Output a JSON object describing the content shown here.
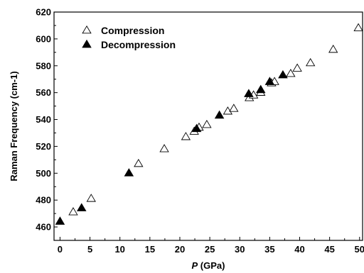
{
  "chart_data": {
    "type": "scatter",
    "xlabel_italic": "P",
    "xlabel_unit": " (GPa)",
    "ylabel": "Raman Frequency (cm-1)",
    "xlim": [
      -1,
      50.5
    ],
    "ylim": [
      450,
      620
    ],
    "xticks": [
      0,
      5,
      10,
      15,
      20,
      25,
      30,
      35,
      40,
      45,
      50
    ],
    "yticks": [
      460,
      480,
      500,
      520,
      540,
      560,
      580,
      600,
      620
    ],
    "legend_position": "top-left",
    "grid": false,
    "series": [
      {
        "name": "Compression",
        "marker": "triangle-open",
        "color": "#000000",
        "points": [
          [
            2.2,
            471
          ],
          [
            5.2,
            481
          ],
          [
            13.1,
            507
          ],
          [
            17.4,
            518
          ],
          [
            21.0,
            527
          ],
          [
            22.4,
            531
          ],
          [
            23.2,
            534
          ],
          [
            24.5,
            536
          ],
          [
            28.0,
            546
          ],
          [
            29.0,
            548
          ],
          [
            31.6,
            556
          ],
          [
            32.3,
            558
          ],
          [
            33.5,
            560
          ],
          [
            35.3,
            567
          ],
          [
            35.8,
            568
          ],
          [
            38.5,
            574
          ],
          [
            39.6,
            578
          ],
          [
            41.8,
            582
          ],
          [
            45.6,
            592
          ],
          [
            49.8,
            608
          ]
        ]
      },
      {
        "name": "Decompression",
        "marker": "triangle-filled",
        "color": "#000000",
        "points": [
          [
            0.0,
            464
          ],
          [
            3.6,
            474
          ],
          [
            11.5,
            500
          ],
          [
            22.8,
            533
          ],
          [
            26.6,
            543
          ],
          [
            31.5,
            559
          ],
          [
            33.5,
            562
          ],
          [
            35.0,
            568
          ],
          [
            37.2,
            573
          ]
        ]
      }
    ]
  }
}
